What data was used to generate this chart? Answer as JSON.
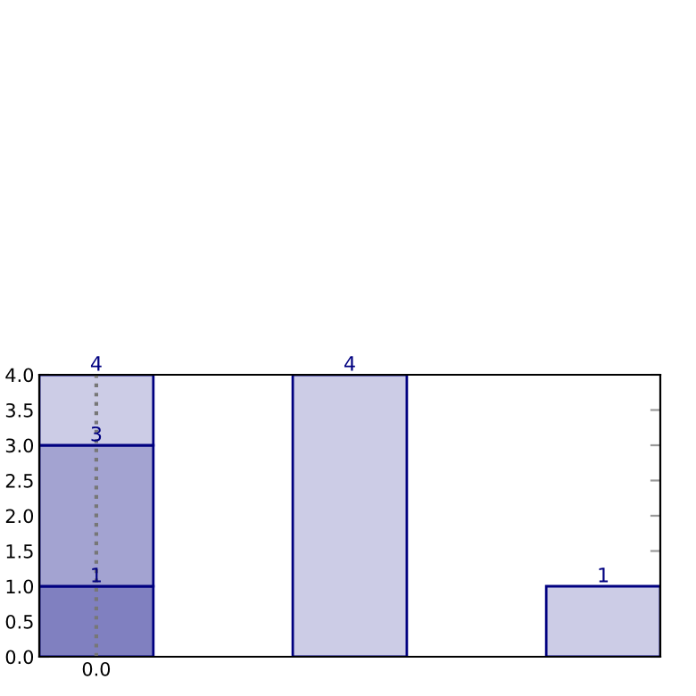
{
  "chart_data": {
    "type": "bar",
    "stacked": true,
    "categories": [
      "0.0",
      null,
      null
    ],
    "series": [
      {
        "color": "#8080c0",
        "values": [
          1,
          null,
          null
        ],
        "value_labels": [
          "1",
          null,
          null
        ]
      },
      {
        "color": "#a3a3d1",
        "values": [
          2,
          null,
          null
        ]
      },
      {
        "color": "#ccccE6",
        "values": [
          1,
          4,
          1
        ],
        "value_labels": [
          null,
          "4",
          "1"
        ]
      }
    ],
    "annotations": [
      {
        "text": "3",
        "x": "0.0",
        "y": 3
      },
      {
        "text": "4",
        "x": "0.0",
        "y": 4
      }
    ],
    "ylim": [
      0,
      4
    ],
    "yticks": [
      {
        "value": 0,
        "label": "0.0"
      },
      {
        "value": 0.5,
        "label": "0.5"
      },
      {
        "value": 1,
        "label": "1.0"
      },
      {
        "value": 1.5,
        "label": "1.5"
      },
      {
        "value": 2,
        "label": "2.0"
      },
      {
        "value": 2.5,
        "label": "2.5"
      },
      {
        "value": 3,
        "label": "3.0"
      },
      {
        "value": 3.5,
        "label": "3.5"
      },
      {
        "value": 4,
        "label": "4.0"
      }
    ],
    "ref_lines": [
      {
        "axis": "x",
        "value": "0.0",
        "color": "#777777",
        "line_style": "dotted"
      }
    ]
  }
}
